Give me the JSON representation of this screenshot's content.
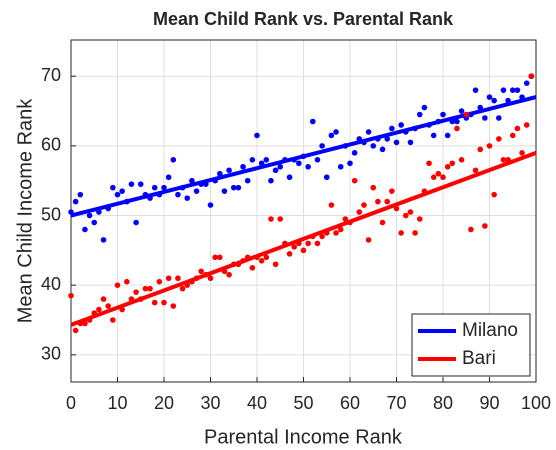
{
  "chart_data": {
    "type": "scatter",
    "title": "Mean Child Rank vs. Parental Rank",
    "xlabel": "Parental Income Rank",
    "ylabel": "Mean Child Income Rank",
    "xlim": [
      0,
      100
    ],
    "ylim": [
      26.1,
      75.2
    ],
    "xticks": [
      0,
      10,
      20,
      30,
      40,
      50,
      60,
      70,
      80,
      90,
      100
    ],
    "yticks": [
      30,
      40,
      50,
      60,
      70
    ],
    "grid": true,
    "legend": "lower right",
    "x": [
      0,
      1,
      2,
      3,
      4,
      5,
      6,
      7,
      8,
      9,
      10,
      11,
      12,
      13,
      14,
      15,
      16,
      17,
      18,
      19,
      20,
      21,
      22,
      23,
      24,
      25,
      26,
      27,
      28,
      29,
      30,
      31,
      32,
      33,
      34,
      35,
      36,
      37,
      38,
      39,
      40,
      41,
      42,
      43,
      44,
      45,
      46,
      47,
      48,
      49,
      50,
      51,
      52,
      53,
      54,
      55,
      56,
      57,
      58,
      59,
      60,
      61,
      62,
      63,
      64,
      65,
      66,
      67,
      68,
      69,
      70,
      71,
      72,
      73,
      74,
      75,
      76,
      77,
      78,
      79,
      80,
      81,
      82,
      83,
      84,
      85,
      86,
      87,
      88,
      89,
      90,
      91,
      92,
      93,
      94,
      95,
      96,
      97,
      98,
      99
    ],
    "series": [
      {
        "name": "Milano",
        "color": "#0000ff",
        "trend": [
          50,
          67
        ],
        "values": [
          50.5,
          52,
          53,
          48,
          50,
          49,
          50.5,
          46.5,
          51,
          54,
          53,
          53.5,
          52,
          54.5,
          49,
          54.5,
          53,
          52.5,
          54,
          53,
          54,
          55.5,
          58,
          53,
          54,
          52.5,
          55,
          53.5,
          54.5,
          54.5,
          51.5,
          55,
          56,
          53.5,
          56.5,
          54,
          54,
          57,
          55,
          58,
          61.5,
          57.5,
          58,
          55,
          56.5,
          57,
          58,
          55.5,
          58,
          57.5,
          58.5,
          57,
          63.5,
          58,
          60,
          55.5,
          61.5,
          62,
          57,
          60,
          57.5,
          59,
          61,
          60.5,
          62,
          60,
          61,
          59.5,
          61,
          62.5,
          60.5,
          63,
          62,
          60.5,
          62.5,
          64.5,
          65.5,
          63,
          61.5,
          63.5,
          64.5,
          61.5,
          63.5,
          63.5,
          65,
          64,
          64.5,
          68,
          65.5,
          64,
          67,
          66.5,
          64,
          68,
          66.5,
          68,
          68,
          67,
          69,
          70
        ]
      },
      {
        "name": "Bari",
        "color": "#ff0000",
        "trend": [
          34.3,
          59
        ],
        "values": [
          38.5,
          33.5,
          34.5,
          34.5,
          35,
          36,
          36.5,
          38,
          37,
          35,
          40,
          36.5,
          40.5,
          38,
          39,
          38,
          39.5,
          39.5,
          37.5,
          40.5,
          37.5,
          41,
          37,
          41,
          39.5,
          40,
          40.5,
          41,
          42,
          41.5,
          41,
          44,
          44,
          42,
          41.5,
          43,
          43,
          43.5,
          44,
          42.5,
          44,
          43.5,
          44,
          49.5,
          43,
          49.5,
          46,
          44.5,
          45.5,
          46,
          45,
          46,
          47,
          46,
          47,
          47.5,
          51.5,
          47.5,
          48,
          49.5,
          49,
          55,
          50.5,
          51.5,
          46.5,
          54,
          52,
          49,
          52,
          53.5,
          51,
          47.5,
          50,
          50.5,
          47.5,
          49.5,
          53.5,
          57.5,
          55.5,
          56,
          55.5,
          57,
          57.5,
          62.5,
          58,
          64.5,
          48,
          56.5,
          59.5,
          48.5,
          60,
          53,
          61,
          58,
          58,
          61.5,
          62.5,
          59,
          63,
          70
        ]
      }
    ]
  }
}
